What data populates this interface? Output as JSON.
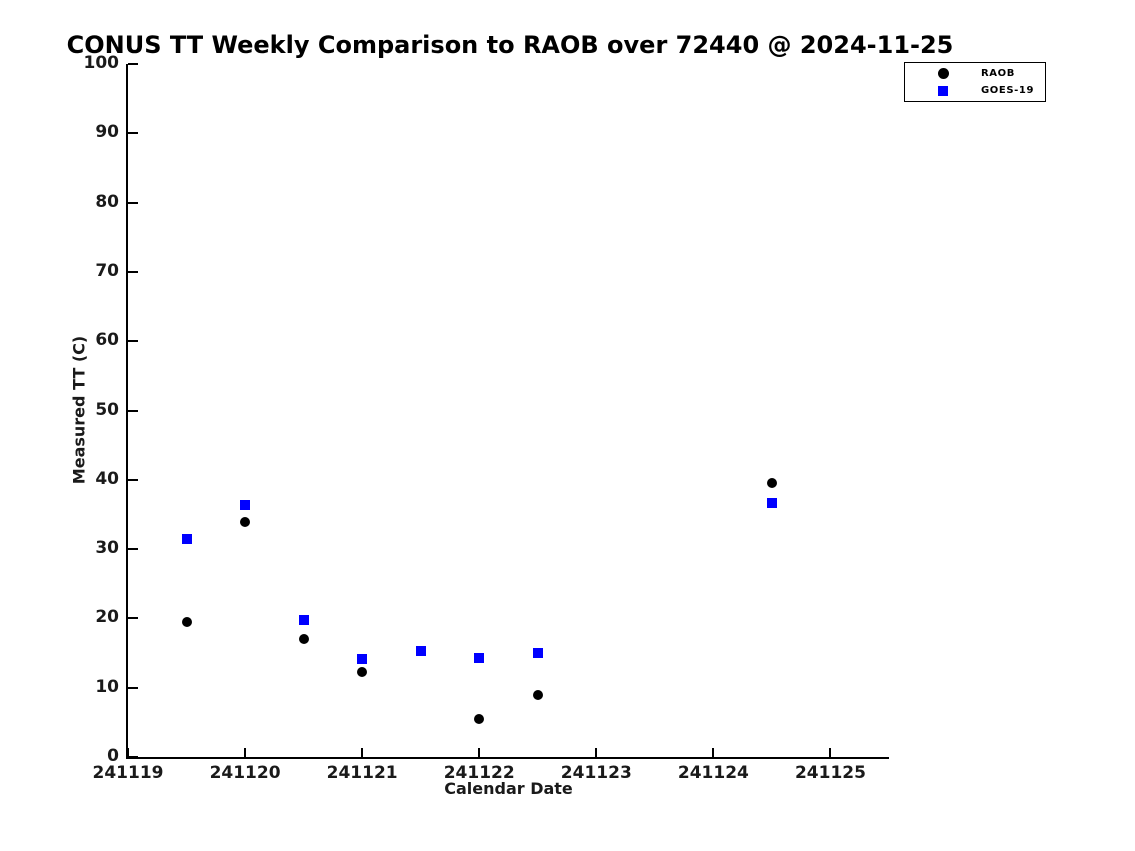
{
  "chart_data": {
    "type": "scatter",
    "title": "CONUS TT Weekly Comparison to RAOB over 72440 @ 2024-11-25",
    "xlabel": "Calendar Date",
    "ylabel": "Measured TT (C)",
    "xlim": [
      241119,
      241125.5
    ],
    "ylim": [
      0,
      100
    ],
    "x_ticks": [
      241119,
      241120,
      241121,
      241122,
      241123,
      241124,
      241125
    ],
    "x_tick_labels": [
      "241119",
      "241120",
      "241121",
      "241122",
      "241123",
      "241124",
      "241125"
    ],
    "y_ticks": [
      0,
      10,
      20,
      30,
      40,
      50,
      60,
      70,
      80,
      90,
      100
    ],
    "y_tick_labels": [
      "0",
      "10",
      "20",
      "30",
      "40",
      "50",
      "60",
      "70",
      "80",
      "90",
      "100"
    ],
    "grid": false,
    "legend_position": "upper-right-outside",
    "series": [
      {
        "name": "RAOB",
        "marker": "circle",
        "color": "#000000",
        "points": [
          {
            "x": 241119.5,
            "y": 19.5
          },
          {
            "x": 241120.0,
            "y": 33.9
          },
          {
            "x": 241120.5,
            "y": 17.0
          },
          {
            "x": 241121.0,
            "y": 12.2
          },
          {
            "x": 241122.0,
            "y": 5.5
          },
          {
            "x": 241122.5,
            "y": 9.0
          },
          {
            "x": 241124.5,
            "y": 39.5
          }
        ]
      },
      {
        "name": "GOES-19",
        "marker": "square",
        "color": "#0000ff",
        "points": [
          {
            "x": 241119.5,
            "y": 31.4
          },
          {
            "x": 241120.0,
            "y": 36.3
          },
          {
            "x": 241120.5,
            "y": 19.7
          },
          {
            "x": 241121.0,
            "y": 14.1
          },
          {
            "x": 241121.5,
            "y": 15.3
          },
          {
            "x": 241122.0,
            "y": 14.3
          },
          {
            "x": 241122.5,
            "y": 15.0
          },
          {
            "x": 241124.5,
            "y": 36.6
          }
        ]
      }
    ]
  }
}
